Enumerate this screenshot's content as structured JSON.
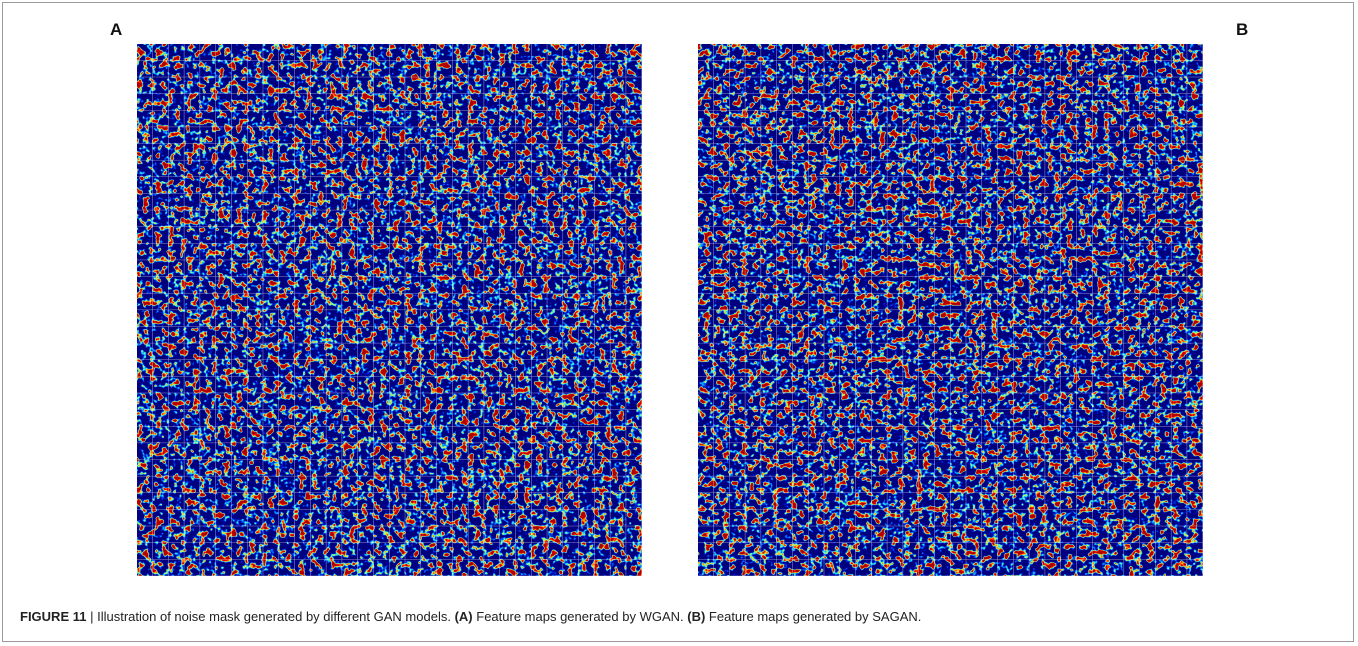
{
  "panels": [
    {
      "label": "A"
    },
    {
      "label": "B"
    }
  ],
  "caption": {
    "figure_label": "FIGURE 11",
    "separator": "|",
    "text": "Illustration of noise mask generated by different GAN models.",
    "parts": [
      {
        "tag": "(A)",
        "text": "Feature maps generated by WGAN."
      },
      {
        "tag": "(B)",
        "text": "Feature maps generated by SAGAN."
      }
    ]
  }
}
